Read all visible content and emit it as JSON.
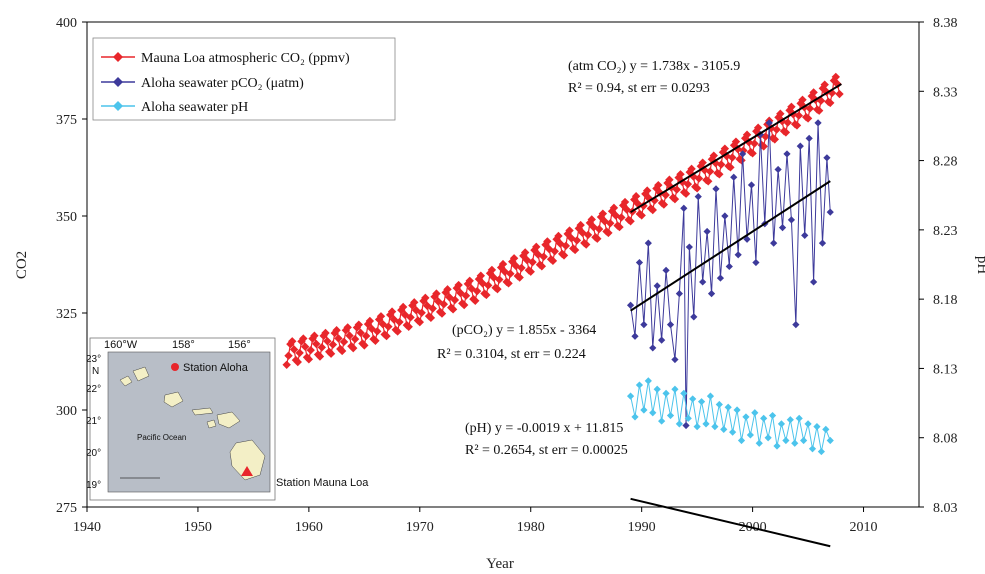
{
  "chart_data": {
    "type": "line",
    "xlabel": "Year",
    "ylabel_left": "CO2",
    "ylabel_right": "pH",
    "xlim": [
      1940,
      2015
    ],
    "ylim_left": [
      275,
      400
    ],
    "ylim_right": [
      8.03,
      8.38
    ],
    "x_ticks": [
      "1940",
      "1950",
      "1960",
      "1970",
      "1980",
      "1990",
      "2000",
      "2010"
    ],
    "y_left_ticks": [
      "275",
      "300",
      "325",
      "350",
      "375",
      "400"
    ],
    "y_right_ticks": [
      "8.03",
      "8.08",
      "8.13",
      "8.18",
      "8.23",
      "8.28",
      "8.33",
      "8.38"
    ],
    "legend_position": "top-left",
    "grid": false,
    "series": [
      {
        "name": "Mauna Loa atmospheric CO₂ (ppmv)",
        "color": "#e8262b",
        "marker": "diamond",
        "axis": "left",
        "trend": [
          [
            1958,
            314.5
          ],
          [
            1965,
            319.5
          ],
          [
            1970,
            325.5
          ],
          [
            1975,
            331
          ],
          [
            1980,
            338.5
          ],
          [
            1985,
            345.5
          ],
          [
            1990,
            353
          ],
          [
            1995,
            360
          ],
          [
            2000,
            369
          ],
          [
            2005,
            378
          ],
          [
            2008,
            384
          ]
        ],
        "seasonal_amplitude": 3,
        "range": [
          1958,
          2008
        ]
      },
      {
        "name": "Aloha seawater pCO₂ (μatm)",
        "color": "#3d3a9b",
        "marker": "diamond",
        "axis": "left",
        "range": [
          1989,
          2007
        ],
        "values": [
          [
            1989.0,
            327
          ],
          [
            1989.4,
            319
          ],
          [
            1989.8,
            338
          ],
          [
            1990.2,
            322
          ],
          [
            1990.6,
            343
          ],
          [
            1991.0,
            316
          ],
          [
            1991.4,
            332
          ],
          [
            1991.8,
            318
          ],
          [
            1992.2,
            336
          ],
          [
            1992.6,
            322
          ],
          [
            1993.0,
            313
          ],
          [
            1993.4,
            330
          ],
          [
            1993.8,
            352
          ],
          [
            1994.0,
            296
          ],
          [
            1994.3,
            342
          ],
          [
            1994.7,
            324
          ],
          [
            1995.1,
            355
          ],
          [
            1995.5,
            333
          ],
          [
            1995.9,
            346
          ],
          [
            1996.3,
            330
          ],
          [
            1996.7,
            357
          ],
          [
            1997.1,
            334
          ],
          [
            1997.5,
            350
          ],
          [
            1997.9,
            337
          ],
          [
            1998.3,
            360
          ],
          [
            1998.7,
            340
          ],
          [
            1999.1,
            366
          ],
          [
            1999.5,
            344
          ],
          [
            1999.9,
            358
          ],
          [
            2000.3,
            338
          ],
          [
            2000.7,
            371
          ],
          [
            2001.1,
            348
          ],
          [
            2001.5,
            374
          ],
          [
            2001.9,
            343
          ],
          [
            2002.3,
            362
          ],
          [
            2002.7,
            347
          ],
          [
            2003.1,
            366
          ],
          [
            2003.5,
            349
          ],
          [
            2003.9,
            322
          ],
          [
            2004.3,
            368
          ],
          [
            2004.7,
            345
          ],
          [
            2005.1,
            370
          ],
          [
            2005.5,
            333
          ],
          [
            2005.9,
            374
          ],
          [
            2006.3,
            343
          ],
          [
            2006.7,
            365
          ],
          [
            2007.0,
            351
          ]
        ]
      },
      {
        "name": "Aloha seawater pH",
        "color": "#4cc4ec",
        "marker": "diamond",
        "axis": "right",
        "range": [
          1989,
          2007
        ],
        "values": [
          [
            1989.0,
            8.11
          ],
          [
            1989.4,
            8.095
          ],
          [
            1989.8,
            8.118
          ],
          [
            1990.2,
            8.1
          ],
          [
            1990.6,
            8.121
          ],
          [
            1991.0,
            8.098
          ],
          [
            1991.4,
            8.115
          ],
          [
            1991.8,
            8.092
          ],
          [
            1992.2,
            8.112
          ],
          [
            1992.6,
            8.096
          ],
          [
            1993.0,
            8.115
          ],
          [
            1993.4,
            8.09
          ],
          [
            1993.8,
            8.112
          ],
          [
            1994.2,
            8.094
          ],
          [
            1994.6,
            8.108
          ],
          [
            1995.0,
            8.088
          ],
          [
            1995.4,
            8.106
          ],
          [
            1995.8,
            8.09
          ],
          [
            1996.2,
            8.11
          ],
          [
            1996.6,
            8.088
          ],
          [
            1997.0,
            8.104
          ],
          [
            1997.4,
            8.086
          ],
          [
            1997.8,
            8.102
          ],
          [
            1998.2,
            8.084
          ],
          [
            1998.6,
            8.1
          ],
          [
            1999.0,
            8.078
          ],
          [
            1999.4,
            8.095
          ],
          [
            1999.8,
            8.082
          ],
          [
            2000.2,
            8.098
          ],
          [
            2000.6,
            8.076
          ],
          [
            2001.0,
            8.094
          ],
          [
            2001.4,
            8.08
          ],
          [
            2001.8,
            8.096
          ],
          [
            2002.2,
            8.074
          ],
          [
            2002.6,
            8.09
          ],
          [
            2003.0,
            8.078
          ],
          [
            2003.4,
            8.093
          ],
          [
            2003.8,
            8.076
          ],
          [
            2004.2,
            8.094
          ],
          [
            2004.6,
            8.078
          ],
          [
            2005.0,
            8.09
          ],
          [
            2005.4,
            8.072
          ],
          [
            2005.8,
            8.088
          ],
          [
            2006.2,
            8.07
          ],
          [
            2006.6,
            8.086
          ],
          [
            2007.0,
            8.078
          ]
        ]
      }
    ],
    "regressions": [
      {
        "series": "atm CO2",
        "axis": "left",
        "x": [
          1989,
          2008
        ],
        "line1": "(atm CO₂) y = 1.738x - 3105.9",
        "line2": "R² = 0.94, st err = 0.0293"
      },
      {
        "series": "pCO2",
        "axis": "left",
        "x": [
          1989,
          2007
        ],
        "line1": "(pCO₂) y = 1.855x - 3364",
        "line2": "R² = 0.3104, st err = 0.224"
      },
      {
        "series": "pH",
        "axis": "right",
        "x": [
          1989,
          2007
        ],
        "line1": "(pH) y = -0.0019 x + 11.815",
        "line2": "R² = 0.2654, st err = 0.00025"
      }
    ]
  },
  "map_inset": {
    "lon_labels": [
      "160°W",
      "158°",
      "156°"
    ],
    "lat_labels": [
      "23°",
      "N",
      "22°",
      "21°",
      "20°",
      "19°"
    ],
    "station_aloha": "Station Aloha",
    "station_mauna_loa": "Station Mauna Loa",
    "ocean_label": "Pacific Ocean",
    "colors": {
      "land": "#f3efc6",
      "sea": "#b8bec7",
      "aloha_marker": "#e8262b",
      "mauna_loa_marker": "#e8262b"
    }
  }
}
